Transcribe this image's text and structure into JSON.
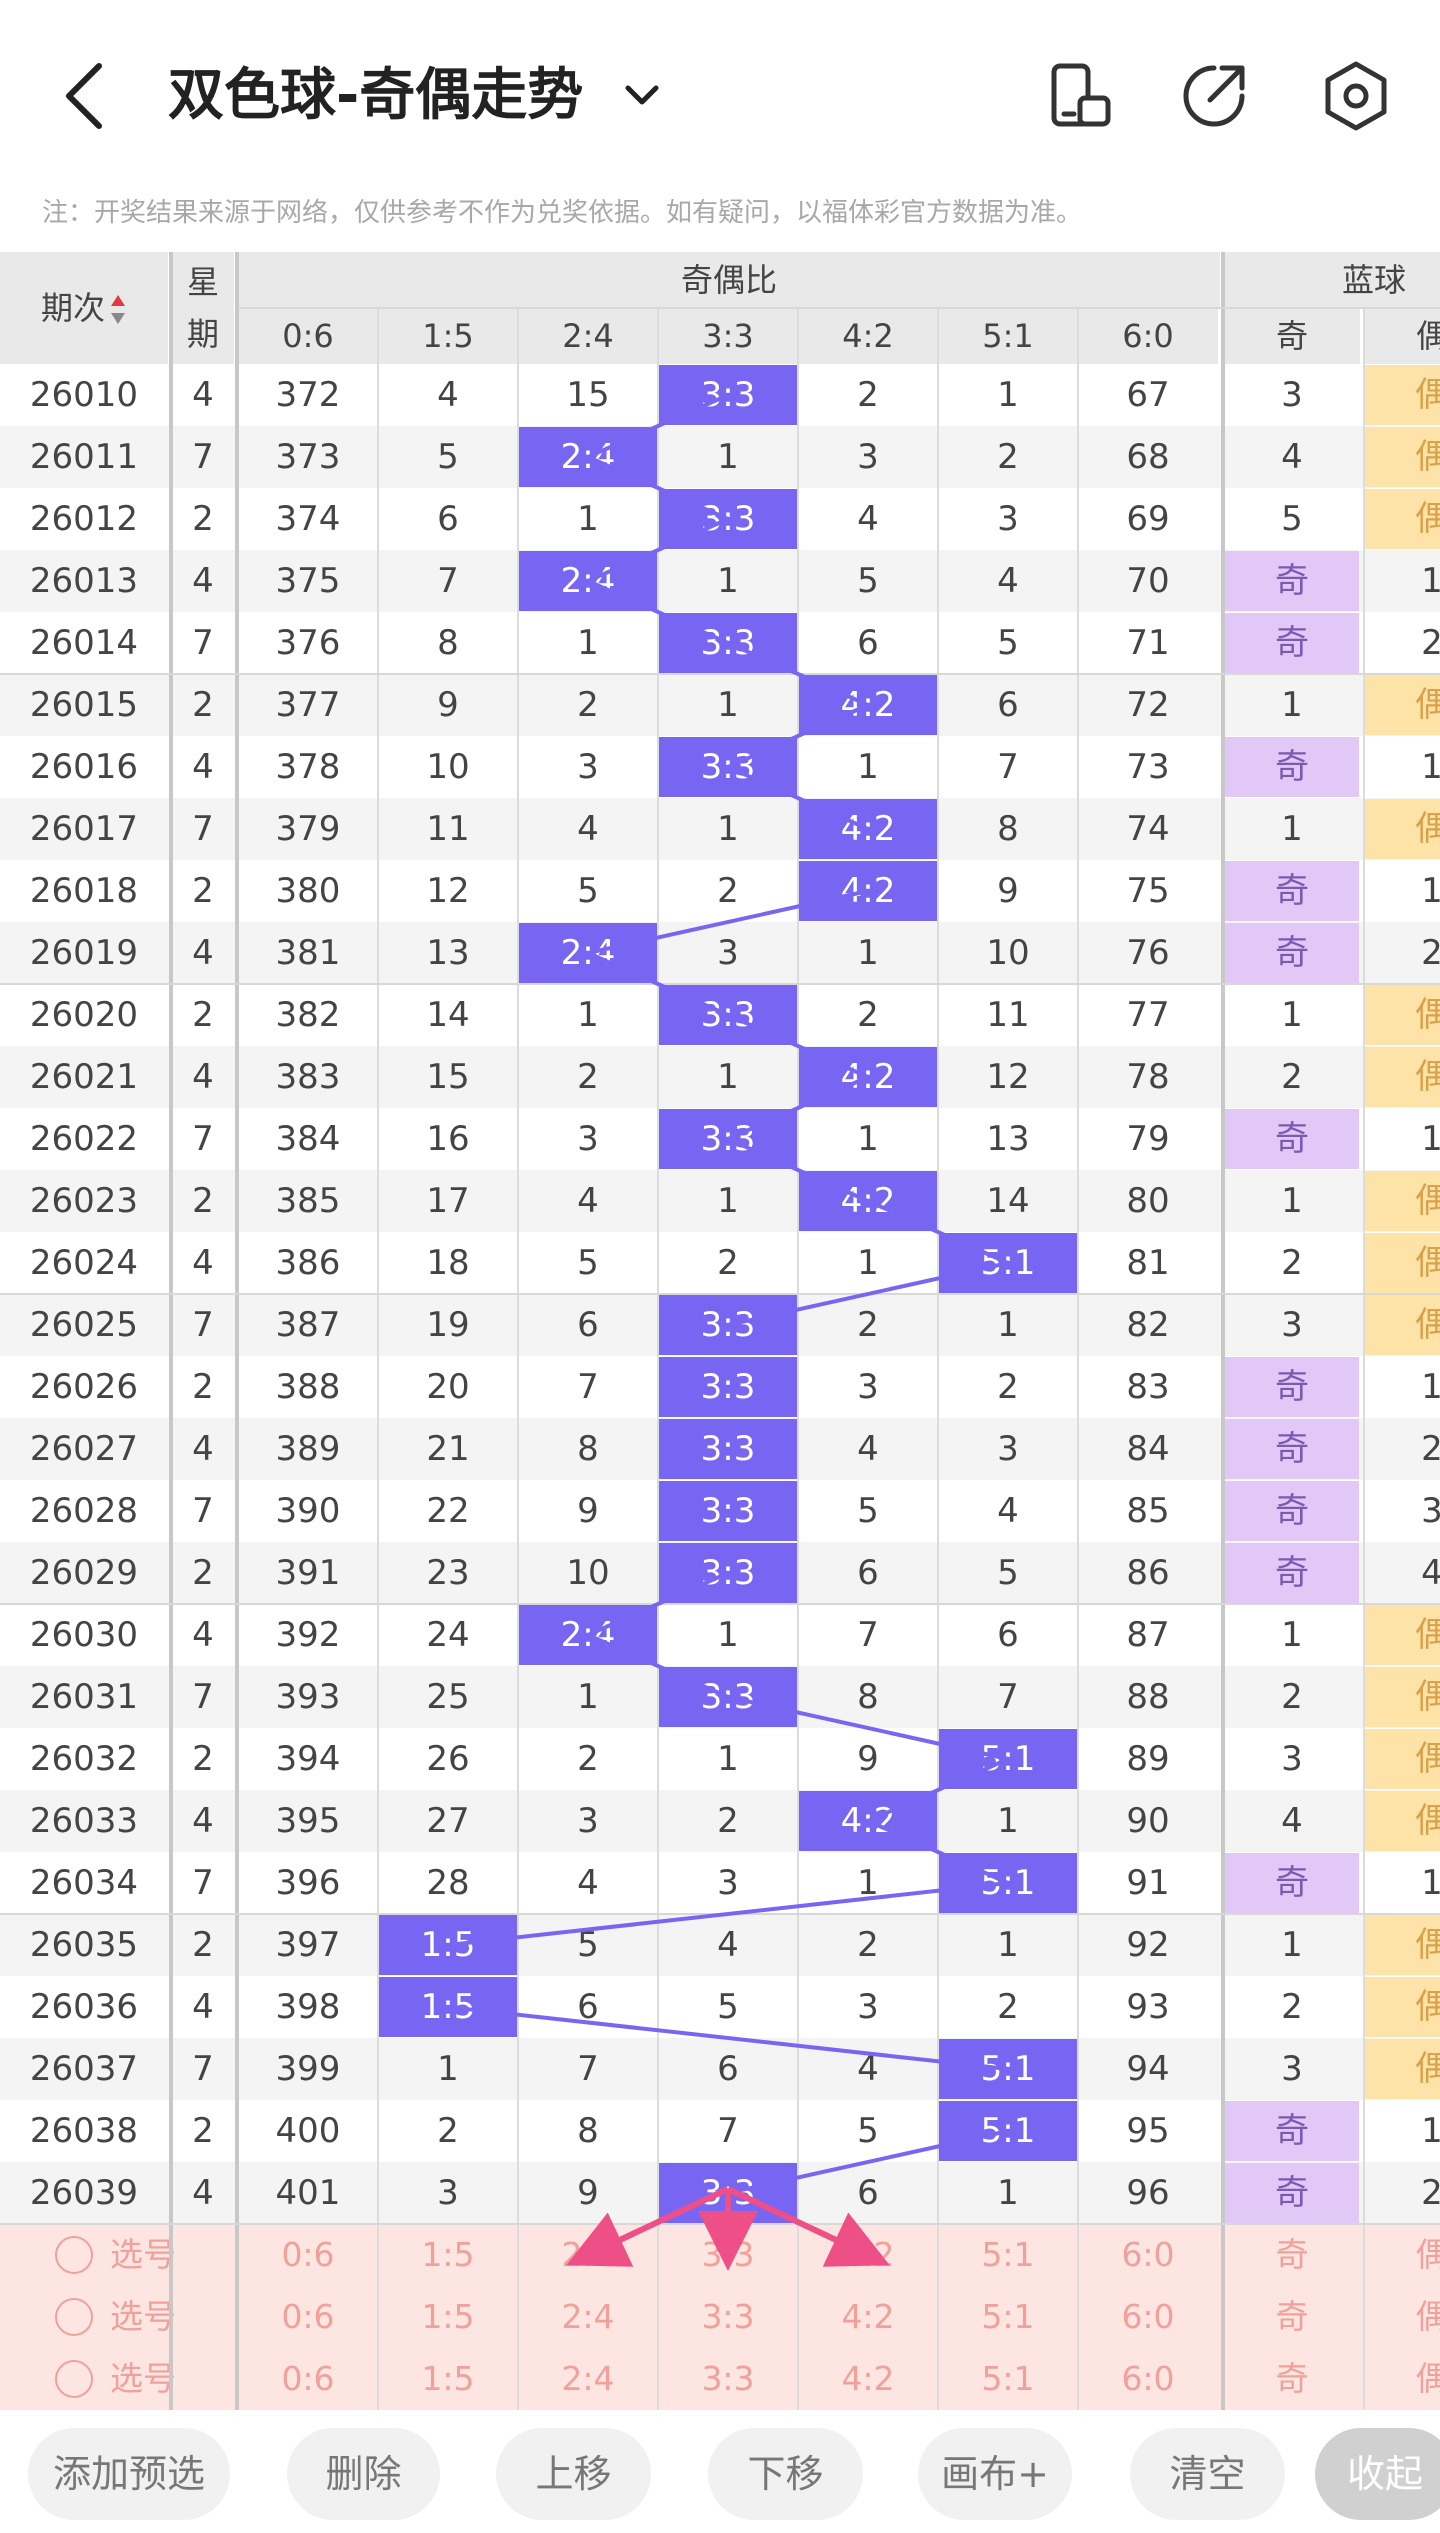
{
  "header": {
    "title": "双色球-奇偶走势",
    "notice": "注：开奖结果来源于网络，仅供参考不作为兑奖依据。如有疑问，以福体彩官方数据为准。"
  },
  "table": {
    "col_period": "期次",
    "col_week": "星期",
    "group_ratio": "奇偶比",
    "group_blue": "蓝球",
    "ratio_cols": [
      "0:6",
      "1:5",
      "2:4",
      "3:3",
      "4:2",
      "5:1",
      "6:0"
    ],
    "blue_cols": [
      "奇",
      "偶"
    ],
    "odd_label": "奇",
    "even_label": "偶",
    "rows": [
      {
        "period": "26010",
        "week": "4",
        "r": [
          "372",
          "4",
          "15",
          "3:3",
          "2",
          "1",
          "67"
        ],
        "hit": 3,
        "blue": [
          "3",
          "偶"
        ],
        "bhit": 1
      },
      {
        "period": "26011",
        "week": "7",
        "r": [
          "373",
          "5",
          "2:4",
          "1",
          "3",
          "2",
          "68"
        ],
        "hit": 2,
        "blue": [
          "4",
          "偶"
        ],
        "bhit": 1
      },
      {
        "period": "26012",
        "week": "2",
        "r": [
          "374",
          "6",
          "1",
          "3:3",
          "4",
          "3",
          "69"
        ],
        "hit": 3,
        "blue": [
          "5",
          "偶"
        ],
        "bhit": 1
      },
      {
        "period": "26013",
        "week": "4",
        "r": [
          "375",
          "7",
          "2:4",
          "1",
          "5",
          "4",
          "70"
        ],
        "hit": 2,
        "blue": [
          "奇",
          "1"
        ],
        "bhit": 0
      },
      {
        "period": "26014",
        "week": "7",
        "r": [
          "376",
          "8",
          "1",
          "3:3",
          "6",
          "5",
          "71"
        ],
        "hit": 3,
        "blue": [
          "奇",
          "2"
        ],
        "bhit": 0
      },
      {
        "period": "26015",
        "week": "2",
        "r": [
          "377",
          "9",
          "2",
          "1",
          "4:2",
          "6",
          "72"
        ],
        "hit": 4,
        "blue": [
          "1",
          "偶"
        ],
        "bhit": 1
      },
      {
        "period": "26016",
        "week": "4",
        "r": [
          "378",
          "10",
          "3",
          "3:3",
          "1",
          "7",
          "73"
        ],
        "hit": 3,
        "blue": [
          "奇",
          "1"
        ],
        "bhit": 0
      },
      {
        "period": "26017",
        "week": "7",
        "r": [
          "379",
          "11",
          "4",
          "1",
          "4:2",
          "8",
          "74"
        ],
        "hit": 4,
        "blue": [
          "1",
          "偶"
        ],
        "bhit": 1
      },
      {
        "period": "26018",
        "week": "2",
        "r": [
          "380",
          "12",
          "5",
          "2",
          "4:2",
          "9",
          "75"
        ],
        "hit": 4,
        "blue": [
          "奇",
          "1"
        ],
        "bhit": 0
      },
      {
        "period": "26019",
        "week": "4",
        "r": [
          "381",
          "13",
          "2:4",
          "3",
          "1",
          "10",
          "76"
        ],
        "hit": 2,
        "blue": [
          "奇",
          "2"
        ],
        "bhit": 0
      },
      {
        "period": "26020",
        "week": "2",
        "r": [
          "382",
          "14",
          "1",
          "3:3",
          "2",
          "11",
          "77"
        ],
        "hit": 3,
        "blue": [
          "1",
          "偶"
        ],
        "bhit": 1
      },
      {
        "period": "26021",
        "week": "4",
        "r": [
          "383",
          "15",
          "2",
          "1",
          "4:2",
          "12",
          "78"
        ],
        "hit": 4,
        "blue": [
          "2",
          "偶"
        ],
        "bhit": 1
      },
      {
        "period": "26022",
        "week": "7",
        "r": [
          "384",
          "16",
          "3",
          "3:3",
          "1",
          "13",
          "79"
        ],
        "hit": 3,
        "blue": [
          "奇",
          "1"
        ],
        "bhit": 0
      },
      {
        "period": "26023",
        "week": "2",
        "r": [
          "385",
          "17",
          "4",
          "1",
          "4:2",
          "14",
          "80"
        ],
        "hit": 4,
        "blue": [
          "1",
          "偶"
        ],
        "bhit": 1
      },
      {
        "period": "26024",
        "week": "4",
        "r": [
          "386",
          "18",
          "5",
          "2",
          "1",
          "5:1",
          "81"
        ],
        "hit": 5,
        "blue": [
          "2",
          "偶"
        ],
        "bhit": 1
      },
      {
        "period": "26025",
        "week": "7",
        "r": [
          "387",
          "19",
          "6",
          "3:3",
          "2",
          "1",
          "82"
        ],
        "hit": 3,
        "blue": [
          "3",
          "偶"
        ],
        "bhit": 1
      },
      {
        "period": "26026",
        "week": "2",
        "r": [
          "388",
          "20",
          "7",
          "3:3",
          "3",
          "2",
          "83"
        ],
        "hit": 3,
        "blue": [
          "奇",
          "1"
        ],
        "bhit": 0
      },
      {
        "period": "26027",
        "week": "4",
        "r": [
          "389",
          "21",
          "8",
          "3:3",
          "4",
          "3",
          "84"
        ],
        "hit": 3,
        "blue": [
          "奇",
          "2"
        ],
        "bhit": 0
      },
      {
        "period": "26028",
        "week": "7",
        "r": [
          "390",
          "22",
          "9",
          "3:3",
          "5",
          "4",
          "85"
        ],
        "hit": 3,
        "blue": [
          "奇",
          "3"
        ],
        "bhit": 0
      },
      {
        "period": "26029",
        "week": "2",
        "r": [
          "391",
          "23",
          "10",
          "3:3",
          "6",
          "5",
          "86"
        ],
        "hit": 3,
        "blue": [
          "奇",
          "4"
        ],
        "bhit": 0
      },
      {
        "period": "26030",
        "week": "4",
        "r": [
          "392",
          "24",
          "2:4",
          "1",
          "7",
          "6",
          "87"
        ],
        "hit": 2,
        "blue": [
          "1",
          "偶"
        ],
        "bhit": 1
      },
      {
        "period": "26031",
        "week": "7",
        "r": [
          "393",
          "25",
          "1",
          "3:3",
          "8",
          "7",
          "88"
        ],
        "hit": 3,
        "blue": [
          "2",
          "偶"
        ],
        "bhit": 1
      },
      {
        "period": "26032",
        "week": "2",
        "r": [
          "394",
          "26",
          "2",
          "1",
          "9",
          "5:1",
          "89"
        ],
        "hit": 5,
        "blue": [
          "3",
          "偶"
        ],
        "bhit": 1
      },
      {
        "period": "26033",
        "week": "4",
        "r": [
          "395",
          "27",
          "3",
          "2",
          "4:2",
          "1",
          "90"
        ],
        "hit": 4,
        "blue": [
          "4",
          "偶"
        ],
        "bhit": 1
      },
      {
        "period": "26034",
        "week": "7",
        "r": [
          "396",
          "28",
          "4",
          "3",
          "1",
          "5:1",
          "91"
        ],
        "hit": 5,
        "blue": [
          "奇",
          "1"
        ],
        "bhit": 0
      },
      {
        "period": "26035",
        "week": "2",
        "r": [
          "397",
          "1:5",
          "5",
          "4",
          "2",
          "1",
          "92"
        ],
        "hit": 1,
        "blue": [
          "1",
          "偶"
        ],
        "bhit": 1
      },
      {
        "period": "26036",
        "week": "4",
        "r": [
          "398",
          "1:5",
          "6",
          "5",
          "3",
          "2",
          "93"
        ],
        "hit": 1,
        "blue": [
          "2",
          "偶"
        ],
        "bhit": 1
      },
      {
        "period": "26037",
        "week": "7",
        "r": [
          "399",
          "1",
          "7",
          "6",
          "4",
          "5:1",
          "94"
        ],
        "hit": 5,
        "blue": [
          "3",
          "偶"
        ],
        "bhit": 1
      },
      {
        "period": "26038",
        "week": "2",
        "r": [
          "400",
          "2",
          "8",
          "7",
          "5",
          "5:1",
          "95"
        ],
        "hit": 5,
        "blue": [
          "奇",
          "1"
        ],
        "bhit": 0
      },
      {
        "period": "26039",
        "week": "4",
        "r": [
          "401",
          "3",
          "9",
          "3:3",
          "6",
          "1",
          "96"
        ],
        "hit": 3,
        "blue": [
          "奇",
          "2"
        ],
        "bhit": 0
      }
    ],
    "select_label": "选号",
    "select_rows": 3
  },
  "toolbar": [
    "添加预选",
    "删除",
    "上移",
    "下移",
    "画布+",
    "清空",
    "收起"
  ],
  "colors": {
    "hit": "#7866f2",
    "blue_odd": "#e2c8f6",
    "blue_even": "#fde3a8",
    "select_bg": "#fde5e1",
    "arrow": "#ee4f86"
  }
}
